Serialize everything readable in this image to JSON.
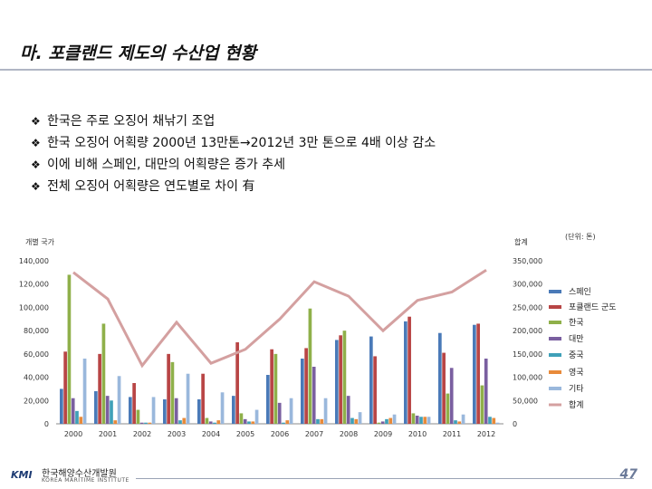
{
  "header": {
    "title": "마. 포클랜드 제도의 수산업 현황"
  },
  "bullets": [
    "한국은 주로 오징어 채낚기 조업",
    "한국 오징어 어획량 2000년 13만톤→2012년 3만 톤으로 4배 이상 감소",
    "이에 비해 스페인, 대만의 어획량은 증가 추세",
    "전체 오징어 어획량은 연도별로 차이 有"
  ],
  "bullet_mark": "❖",
  "footer": {
    "logo_mark": "KMI",
    "logo_name": "한국해양수산개발원",
    "logo_eng": "KOREA MARITIME INSTITUTE",
    "page_number": "47"
  },
  "chart_data": {
    "type": "bar",
    "left_axis_title": "개별 국가",
    "right_axis_title": "합계",
    "unit_note": "(단위: 톤)",
    "categories": [
      "2000",
      "2001",
      "2002",
      "2003",
      "2004",
      "2005",
      "2006",
      "2007",
      "2008",
      "2009",
      "2010",
      "2011",
      "2012"
    ],
    "ylim": [
      0,
      140000
    ],
    "yticks": [
      "0",
      "20,000",
      "40,000",
      "60,000",
      "80,000",
      "100,000",
      "120,000",
      "140,000"
    ],
    "y2lim": [
      0,
      350000
    ],
    "y2ticks": [
      "0",
      "50,000",
      "100,000",
      "150,000",
      "200,000",
      "250,000",
      "300,000",
      "350,000"
    ],
    "series": [
      {
        "name": "스페인",
        "color": "#4a7ab8",
        "values": [
          30000,
          28000,
          23000,
          21000,
          21000,
          24000,
          42000,
          56000,
          72000,
          75000,
          88000,
          78000,
          85000
        ]
      },
      {
        "name": "포클랜드 군도",
        "color": "#b84545",
        "values": [
          62000,
          60000,
          35000,
          60000,
          43000,
          70000,
          64000,
          65000,
          76000,
          58000,
          92000,
          61000,
          86000
        ]
      },
      {
        "name": "한국",
        "color": "#8fb04a",
        "values": [
          128000,
          86000,
          12000,
          53000,
          5000,
          9000,
          60000,
          99000,
          80000,
          1000,
          9000,
          26000,
          33000
        ]
      },
      {
        "name": "대만",
        "color": "#7a5fa0",
        "values": [
          22000,
          24000,
          1000,
          22000,
          2000,
          4000,
          18000,
          49000,
          24000,
          2000,
          7000,
          48000,
          56000
        ]
      },
      {
        "name": "중국",
        "color": "#3fa0b8",
        "values": [
          11000,
          20000,
          1000,
          3000,
          1000,
          2000,
          1000,
          4000,
          5000,
          4000,
          6000,
          3000,
          6000
        ]
      },
      {
        "name": "영국",
        "color": "#e88a3a",
        "values": [
          6000,
          3000,
          1000,
          5000,
          3000,
          2000,
          3000,
          4000,
          4000,
          5000,
          6000,
          2000,
          5000
        ]
      },
      {
        "name": "기타",
        "color": "#9ab8dc",
        "values": [
          56000,
          41000,
          23000,
          43000,
          27000,
          12000,
          22000,
          22000,
          10000,
          8000,
          6000,
          8000,
          1000
        ]
      }
    ],
    "line": {
      "name": "합계",
      "color": "#d4a0a0",
      "values": [
        325000,
        268000,
        125000,
        218000,
        130000,
        160000,
        225000,
        305000,
        274000,
        200000,
        265000,
        283000,
        330000
      ]
    }
  }
}
